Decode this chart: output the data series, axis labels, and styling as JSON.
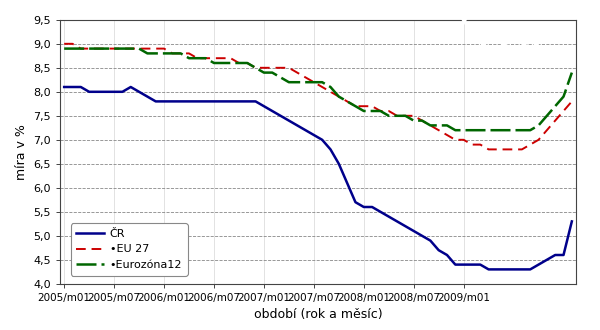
{
  "ylabel": "míra v %",
  "xlabel": "období (rok a měsíc)",
  "ylim": [
    4.0,
    9.5
  ],
  "yticks": [
    4.0,
    4.5,
    5.0,
    5.5,
    6.0,
    6.5,
    7.0,
    7.5,
    8.0,
    8.5,
    9.0,
    9.5
  ],
  "xtick_labels": [
    "2005/m01",
    "2005/m07",
    "2006/m01",
    "2006/m07",
    "2007/m01",
    "2007/m07",
    "2008/m01",
    "2008/m07",
    "2009/m01"
  ],
  "bg_color": "#ffffff",
  "legend_labels": [
    "ČR",
    "•EU 27",
    "•Eurozóna12"
  ],
  "cr_color": "#00008B",
  "eu_color": "#CC0000",
  "ez_color": "#006600",
  "cr_data": [
    8.1,
    8.1,
    8.1,
    8.0,
    8.0,
    8.0,
    8.0,
    8.0,
    8.1,
    8.0,
    7.9,
    7.8,
    7.8,
    7.8,
    7.8,
    7.8,
    7.8,
    7.8,
    7.8,
    7.8,
    7.8,
    7.8,
    7.8,
    7.8,
    7.7,
    7.6,
    7.5,
    7.4,
    7.3,
    7.2,
    7.1,
    7.0,
    6.8,
    6.5,
    6.1,
    5.7,
    5.6,
    5.6,
    5.5,
    5.4,
    5.3,
    5.2,
    5.1,
    5.0,
    4.9,
    4.7,
    4.6,
    4.4,
    4.4,
    4.4,
    4.4,
    4.3,
    4.3,
    4.3,
    4.3,
    4.3,
    4.3,
    4.4,
    4.5,
    4.6,
    4.6,
    5.3
  ],
  "eu_data": [
    9.0,
    9.0,
    8.9,
    8.9,
    8.9,
    8.9,
    8.9,
    8.9,
    8.9,
    8.9,
    8.9,
    8.9,
    8.9,
    8.8,
    8.8,
    8.8,
    8.7,
    8.7,
    8.7,
    8.7,
    8.7,
    8.6,
    8.6,
    8.5,
    8.5,
    8.5,
    8.5,
    8.5,
    8.4,
    8.3,
    8.2,
    8.1,
    8.0,
    7.9,
    7.8,
    7.7,
    7.7,
    7.7,
    7.6,
    7.6,
    7.5,
    7.5,
    7.5,
    7.4,
    7.3,
    7.2,
    7.1,
    7.0,
    7.0,
    6.9,
    6.9,
    6.8,
    6.8,
    6.8,
    6.8,
    6.8,
    6.9,
    7.0,
    7.2,
    7.4,
    7.6,
    7.8
  ],
  "ez_data": [
    8.9,
    8.9,
    8.9,
    8.9,
    8.9,
    8.9,
    8.9,
    8.9,
    8.9,
    8.9,
    8.8,
    8.8,
    8.8,
    8.8,
    8.8,
    8.7,
    8.7,
    8.7,
    8.6,
    8.6,
    8.6,
    8.6,
    8.6,
    8.5,
    8.4,
    8.4,
    8.3,
    8.2,
    8.2,
    8.2,
    8.2,
    8.2,
    8.1,
    7.9,
    7.8,
    7.7,
    7.6,
    7.6,
    7.6,
    7.5,
    7.5,
    7.5,
    7.4,
    7.4,
    7.3,
    7.3,
    7.3,
    7.2,
    7.2,
    7.2,
    7.2,
    7.2,
    7.2,
    7.2,
    7.2,
    7.2,
    7.2,
    7.3,
    7.5,
    7.7,
    7.9,
    8.4
  ]
}
